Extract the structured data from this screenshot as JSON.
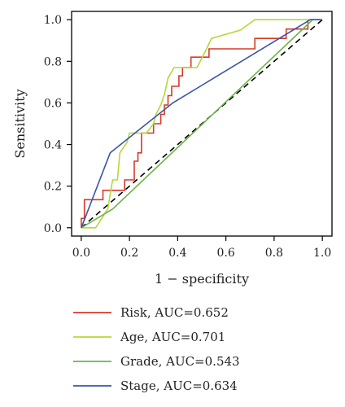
{
  "chart_data": {
    "type": "line",
    "title": "",
    "xlabel": "1 − specificity",
    "ylabel": "Sensitivity",
    "xlim": [
      -0.04,
      1.04
    ],
    "ylim": [
      -0.04,
      1.04
    ],
    "xticks": [
      "0.0",
      "0.2",
      "0.4",
      "0.6",
      "0.8",
      "1.0"
    ],
    "yticks": [
      "0.0",
      "0.2",
      "0.4",
      "0.6",
      "0.8",
      "1.0"
    ],
    "grid": false,
    "legend_position": "below",
    "reference_line": {
      "x": [
        0,
        1
      ],
      "y": [
        0,
        1
      ],
      "style": "dashed",
      "color": "#000000"
    },
    "series": [
      {
        "name": "Risk, AUC=0.652",
        "color": "#d63a2a",
        "x": [
          0,
          0,
          0.013,
          0.013,
          0.09,
          0.09,
          0.125,
          0.125,
          0.18,
          0.18,
          0.22,
          0.22,
          0.235,
          0.235,
          0.25,
          0.25,
          0.3,
          0.3,
          0.33,
          0.33,
          0.345,
          0.345,
          0.36,
          0.36,
          0.375,
          0.375,
          0.39,
          0.39,
          0.405,
          0.405,
          0.42,
          0.42,
          0.435,
          0.435,
          0.455,
          0.455,
          0.53,
          0.53,
          0.72,
          0.72,
          0.85,
          0.85,
          0.94,
          0.94,
          0.99
        ],
        "y": [
          0,
          0.045,
          0.045,
          0.135,
          0.135,
          0.18,
          0.18,
          0.18,
          0.18,
          0.23,
          0.23,
          0.32,
          0.32,
          0.36,
          0.36,
          0.455,
          0.455,
          0.5,
          0.5,
          0.545,
          0.545,
          0.59,
          0.59,
          0.635,
          0.635,
          0.68,
          0.68,
          0.68,
          0.68,
          0.73,
          0.73,
          0.77,
          0.77,
          0.77,
          0.77,
          0.82,
          0.82,
          0.86,
          0.86,
          0.91,
          0.91,
          0.955,
          0.955,
          1.0,
          1.0
        ]
      },
      {
        "name": "Age, AUC=0.701",
        "color": "#b5d83a",
        "x": [
          0,
          0.06,
          0.11,
          0.13,
          0.15,
          0.16,
          0.19,
          0.2,
          0.27,
          0.3,
          0.31,
          0.33,
          0.345,
          0.36,
          0.375,
          0.385,
          0.395,
          0.41,
          0.455,
          0.48,
          0.52,
          0.54,
          0.66,
          0.72,
          0.86,
          0.88,
          0.93,
          0.96,
          0.99
        ],
        "y": [
          0,
          0,
          0.09,
          0.23,
          0.23,
          0.36,
          0.41,
          0.455,
          0.455,
          0.5,
          0.545,
          0.59,
          0.64,
          0.72,
          0.75,
          0.77,
          0.77,
          0.77,
          0.77,
          0.77,
          0.86,
          0.91,
          0.95,
          1.0,
          1.0,
          1.0,
          1.0,
          1.0,
          1.0
        ]
      },
      {
        "name": "Grade, AUC=0.543",
        "color": "#6fb24a",
        "x": [
          0,
          0.13,
          0.96
        ],
        "y": [
          0,
          0.09,
          1.0
        ]
      },
      {
        "name": "Stage, AUC=0.634",
        "color": "#3a55a8",
        "x": [
          0,
          0.12,
          0.38,
          0.95,
          1.0
        ],
        "y": [
          0,
          0.36,
          0.6,
          1.0,
          1.0
        ]
      }
    ]
  }
}
